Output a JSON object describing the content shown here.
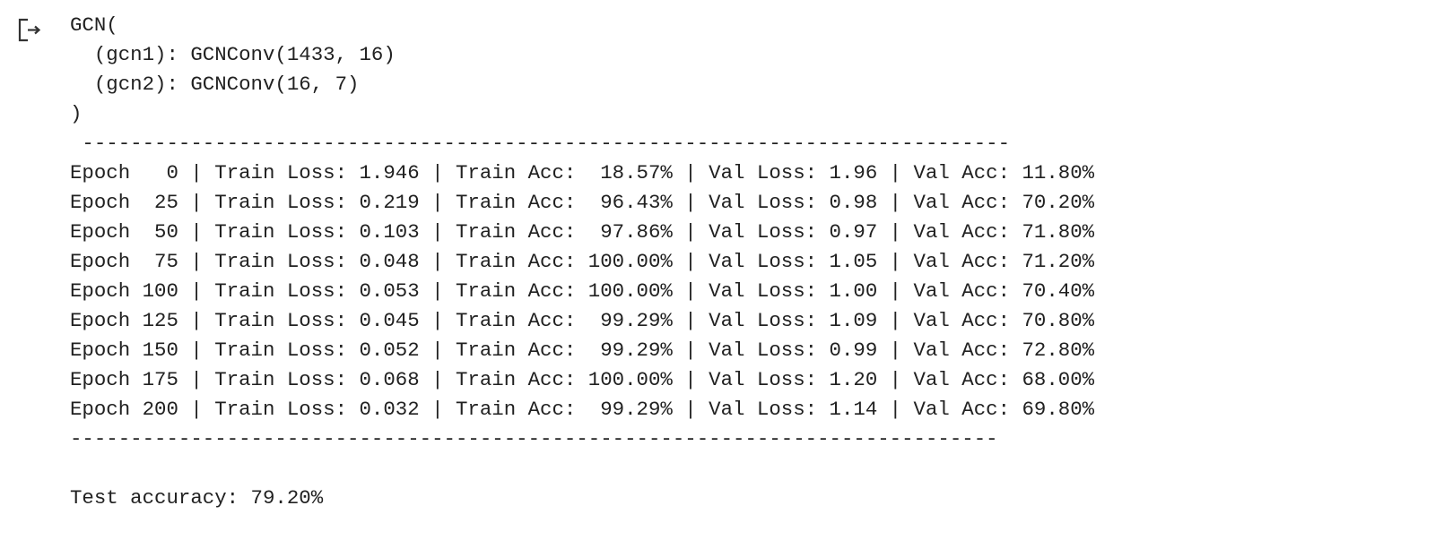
{
  "model_summary": {
    "lines": [
      "GCN(",
      "  (gcn1): GCNConv(1433, 16)",
      "  (gcn2): GCNConv(16, 7)",
      ")"
    ]
  },
  "divider_top": " -----------------------------------------------------------------------------",
  "training_log": {
    "rows": [
      "Epoch   0 | Train Loss: 1.946 | Train Acc:  18.57% | Val Loss: 1.96 | Val Acc: 11.80%",
      "Epoch  25 | Train Loss: 0.219 | Train Acc:  96.43% | Val Loss: 0.98 | Val Acc: 70.20%",
      "Epoch  50 | Train Loss: 0.103 | Train Acc:  97.86% | Val Loss: 0.97 | Val Acc: 71.80%",
      "Epoch  75 | Train Loss: 0.048 | Train Acc: 100.00% | Val Loss: 1.05 | Val Acc: 71.20%",
      "Epoch 100 | Train Loss: 0.053 | Train Acc: 100.00% | Val Loss: 1.00 | Val Acc: 70.40%",
      "Epoch 125 | Train Loss: 0.045 | Train Acc:  99.29% | Val Loss: 1.09 | Val Acc: 70.80%",
      "Epoch 150 | Train Loss: 0.052 | Train Acc:  99.29% | Val Loss: 0.99 | Val Acc: 72.80%",
      "Epoch 175 | Train Loss: 0.068 | Train Acc: 100.00% | Val Loss: 1.20 | Val Acc: 68.00%",
      "Epoch 200 | Train Loss: 0.032 | Train Acc:  99.29% | Val Loss: 1.14 | Val Acc: 69.80%"
    ]
  },
  "divider_bottom": "-----------------------------------------------------------------------------",
  "test_result": "Test accuracy: 79.20%"
}
